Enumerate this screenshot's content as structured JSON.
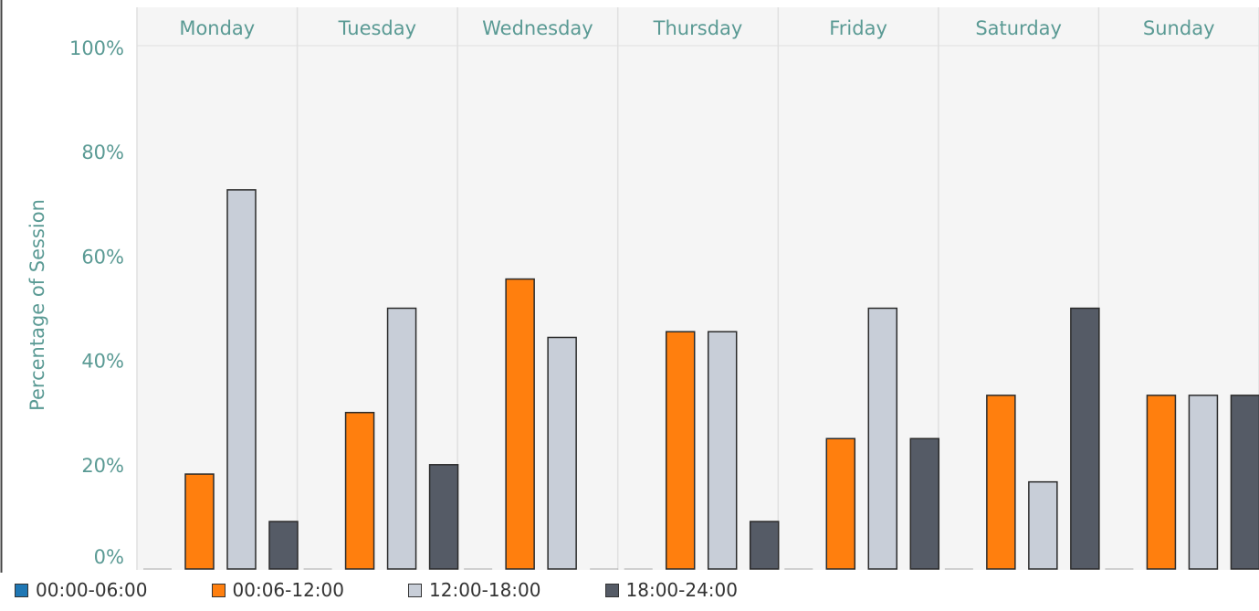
{
  "chart_data": {
    "type": "bar",
    "ylabel": "Percentage of Session",
    "ylim": [
      0,
      100
    ],
    "y_ticks": [
      "0%",
      "20%",
      "40%",
      "60%",
      "80%",
      "100%"
    ],
    "y_tick_values": [
      0,
      20,
      40,
      60,
      80,
      100
    ],
    "categories": [
      "Monday",
      "Tuesday",
      "Wednesday",
      "Thursday",
      "Friday",
      "Saturday",
      "Sunday"
    ],
    "series": [
      {
        "name": "00:00-06:00",
        "color": "#1f77b4",
        "values": [
          0,
          0,
          0,
          0,
          0,
          0,
          0
        ]
      },
      {
        "name": "00:06-12:00",
        "color": "#ff7f0e",
        "values": [
          18.2,
          30,
          55.6,
          45.5,
          25,
          33.3,
          33.3
        ]
      },
      {
        "name": "12:00-18:00",
        "color": "#c8ced8",
        "values": [
          72.7,
          50,
          44.4,
          45.5,
          50,
          16.7,
          33.3
        ]
      },
      {
        "name": "18:00-24:00",
        "color": "#555b66",
        "values": [
          9.1,
          20,
          0,
          9.1,
          25,
          50,
          33.3
        ]
      }
    ],
    "grid": true,
    "legend": "bottom"
  },
  "colors": {
    "background": "#f5f5f5",
    "axis_text": "#5a9a94",
    "bar_outline": "#2b2b2b",
    "divider": "#e0e0e0"
  }
}
